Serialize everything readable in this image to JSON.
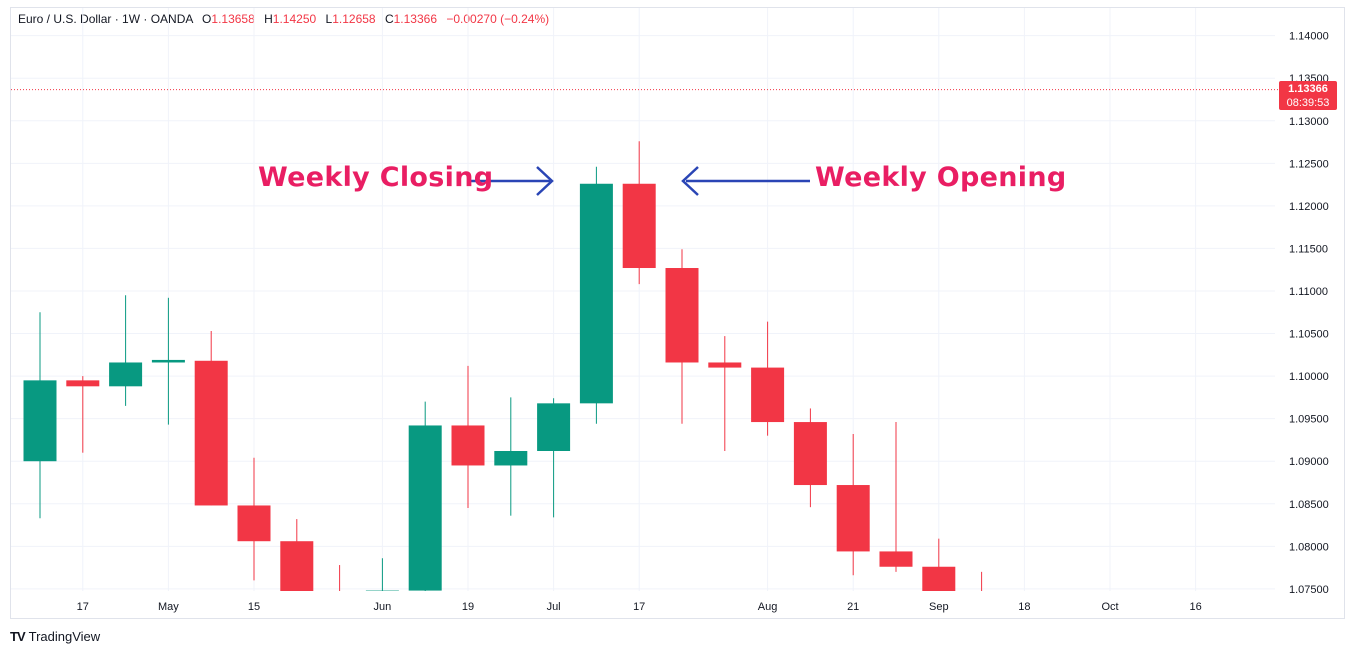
{
  "header": {
    "symbol": "Euro / U.S. Dollar · 1W · OANDA",
    "o_label": "O",
    "o_value": "1.13658",
    "h_label": "H",
    "h_value": "1.14250",
    "l_label": "L",
    "l_value": "1.12658",
    "c_label": "C",
    "c_value": "1.13366",
    "change": "−0.00270 (−0.24%)"
  },
  "price_badge": {
    "price": "1.13366",
    "countdown": "08:39:53"
  },
  "annotations": {
    "closing": "Weekly Closing",
    "opening": "Weekly Opening"
  },
  "branding": {
    "name": "TradingView",
    "logo": "TV"
  },
  "colors": {
    "up": "#089981",
    "down": "#f23645",
    "annotation": "#e91e63",
    "arrow": "#2a45b5",
    "grid": "#f0f3fa"
  },
  "chart_data": {
    "type": "candlestick",
    "title": "",
    "ylim": [
      1.07475,
      1.14325
    ],
    "y_ticks": [
      "1.07500",
      "1.08000",
      "1.08500",
      "1.09000",
      "1.09500",
      "1.10000",
      "1.10500",
      "1.11000",
      "1.11500",
      "1.12000",
      "1.12500",
      "1.13000",
      "1.13500",
      "1.14000"
    ],
    "last_price": 1.13366,
    "x_labels": [
      {
        "index": 1.0,
        "label": "17"
      },
      {
        "index": 3.0,
        "label": "May"
      },
      {
        "index": 5.0,
        "label": "15"
      },
      {
        "index": 8.0,
        "label": "Jun"
      },
      {
        "index": 10.0,
        "label": "19"
      },
      {
        "index": 12.0,
        "label": "Jul"
      },
      {
        "index": 14.0,
        "label": "17"
      },
      {
        "index": 17.0,
        "label": "Aug"
      },
      {
        "index": 19.0,
        "label": "21"
      },
      {
        "index": 21.0,
        "label": "Sep"
      },
      {
        "index": 23.0,
        "label": "18"
      },
      {
        "index": 25.0,
        "label": "Oct"
      },
      {
        "index": 27.0,
        "label": "16"
      }
    ],
    "candles": [
      {
        "o": 1.09,
        "h": 1.1075,
        "l": 1.0833,
        "c": 1.0995
      },
      {
        "o": 1.0995,
        "h": 1.1,
        "l": 1.091,
        "c": 1.0988
      },
      {
        "o": 1.0988,
        "h": 1.1095,
        "l": 1.0965,
        "c": 1.1016
      },
      {
        "o": 1.1016,
        "h": 1.1092,
        "l": 1.0943,
        "c": 1.1019
      },
      {
        "o": 1.1018,
        "h": 1.1053,
        "l": 1.0848,
        "c": 1.0848
      },
      {
        "o": 1.0848,
        "h": 1.0904,
        "l": 1.076,
        "c": 1.0806
      },
      {
        "o": 1.0806,
        "h": 1.0832,
        "l": 1.074,
        "c": 1.074
      },
      {
        "o": 1.074,
        "h": 1.0778,
        "l": 1.07,
        "c": 1.0735
      },
      {
        "o": 1.0735,
        "h": 1.0786,
        "l": 1.07,
        "c": 1.0748
      },
      {
        "o": 1.0748,
        "h": 1.097,
        "l": 1.0746,
        "c": 1.0942
      },
      {
        "o": 1.0942,
        "h": 1.1012,
        "l": 1.0845,
        "c": 1.0895
      },
      {
        "o": 1.0895,
        "h": 1.0975,
        "l": 1.0836,
        "c": 1.0912
      },
      {
        "o": 1.0912,
        "h": 1.0974,
        "l": 1.0834,
        "c": 1.0968
      },
      {
        "o": 1.0968,
        "h": 1.1246,
        "l": 1.0944,
        "c": 1.1226
      },
      {
        "o": 1.1226,
        "h": 1.1276,
        "l": 1.1108,
        "c": 1.1127
      },
      {
        "o": 1.1127,
        "h": 1.1149,
        "l": 1.0944,
        "c": 1.1016
      },
      {
        "o": 1.1016,
        "h": 1.1047,
        "l": 1.0912,
        "c": 1.101
      },
      {
        "o": 1.101,
        "h": 1.1064,
        "l": 1.093,
        "c": 1.0946
      },
      {
        "o": 1.0946,
        "h": 1.0962,
        "l": 1.0846,
        "c": 1.0872
      },
      {
        "o": 1.0872,
        "h": 1.0932,
        "l": 1.0766,
        "c": 1.0794
      },
      {
        "o": 1.0794,
        "h": 1.0946,
        "l": 1.077,
        "c": 1.0776
      },
      {
        "o": 1.0776,
        "h": 1.0809,
        "l": 1.07,
        "c": 1.074
      },
      {
        "o": 1.074,
        "h": 1.077,
        "l": 1.07,
        "c": 1.072
      }
    ]
  }
}
